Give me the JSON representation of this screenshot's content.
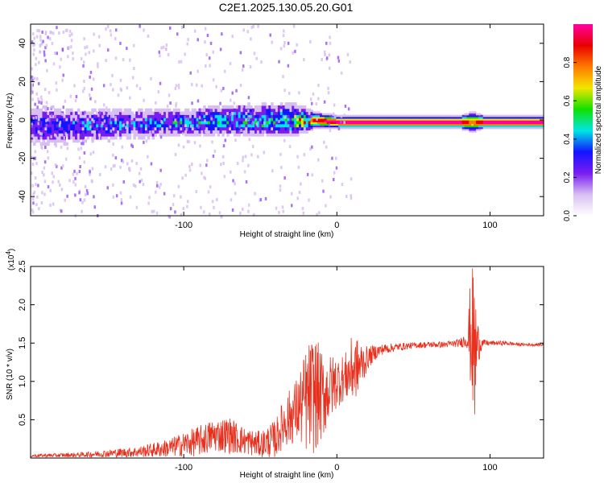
{
  "title": "C2E1.2025.130.05.20.G01",
  "colors": {
    "series": "#e8301e",
    "frame": "#000000"
  },
  "chart_data": [
    {
      "type": "heatmap",
      "name": "spectrogram",
      "xlabel": "Height of straight line (km)",
      "ylabel": "Frequency (Hz)",
      "xlim": [
        -200,
        135
      ],
      "ylim": [
        -50,
        50
      ],
      "xticks": [
        -100,
        0,
        100
      ],
      "xtick_labels": [
        "-100",
        "0",
        "100"
      ],
      "yticks": [
        -40,
        -20,
        0,
        20,
        40
      ],
      "ytick_labels": [
        "-40",
        "-20",
        "0",
        "20",
        "40"
      ],
      "colorbar": {
        "label": "Normalized spectral amplitude",
        "range": [
          0,
          1
        ],
        "ticks": [
          0.0,
          0.2,
          0.4,
          0.6,
          0.8
        ],
        "tick_labels": [
          "0.0",
          "0.2",
          "0.4",
          "0.6",
          "0.8"
        ],
        "colormap": [
          "#ffffff",
          "#d8bff2",
          "#7a1cf0",
          "#1414ff",
          "#00e5e5",
          "#12e000",
          "#f2e500",
          "#ff7a00",
          "#e80000",
          "#ff00a0"
        ]
      },
      "band_profile": {
        "x": [
          -200,
          -170,
          -140,
          -100,
          -60,
          -30,
          -15,
          0,
          20,
          50,
          80,
          88,
          95,
          110,
          135
        ],
        "center_hz": [
          -3,
          -3,
          -2,
          -1,
          0,
          0,
          0,
          -1,
          -1,
          -1,
          -1,
          -1,
          -1,
          -1,
          -1
        ],
        "halfwidth_hz": [
          9,
          8,
          7,
          6,
          7,
          7,
          3,
          2.5,
          2.5,
          2.5,
          2.5,
          4,
          2.5,
          2.5,
          2.5
        ],
        "peak_amplitude": [
          0.3,
          0.33,
          0.35,
          0.4,
          0.45,
          0.5,
          0.9,
          1.0,
          1.0,
          1.0,
          1.0,
          0.8,
          1.0,
          1.0,
          1.0
        ]
      }
    },
    {
      "type": "line",
      "name": "snr",
      "xlabel": "Height of straight line (km)",
      "ylabel": "SNR (10 * v/v)",
      "y_multiplier": "(x10",
      "y_multiplier_exp": "4",
      "y_multiplier_close": ")",
      "xlim": [
        -200,
        135
      ],
      "ylim": [
        0,
        2.5
      ],
      "xticks": [
        -100,
        0,
        100
      ],
      "xtick_labels": [
        "-100",
        "0",
        "100"
      ],
      "yticks": [
        0.5,
        1.0,
        1.5,
        2.0,
        2.5
      ],
      "ytick_labels": [
        "0.5",
        "1.0",
        "1.5",
        "2.0",
        "2.5"
      ],
      "series": [
        {
          "name": "SNR",
          "x": [
            -200,
            -170,
            -150,
            -130,
            -110,
            -100,
            -90,
            -80,
            -70,
            -60,
            -50,
            -40,
            -35,
            -30,
            -25,
            -20,
            -15,
            -10,
            -5,
            0,
            5,
            10,
            15,
            20,
            25,
            30,
            40,
            50,
            60,
            70,
            80,
            85,
            88,
            90,
            92,
            95,
            100,
            110,
            120,
            135
          ],
          "values": [
            0.03,
            0.04,
            0.06,
            0.08,
            0.13,
            0.18,
            0.22,
            0.3,
            0.3,
            0.22,
            0.18,
            0.25,
            0.45,
            0.55,
            0.65,
            0.75,
            0.85,
            0.8,
            0.9,
            1.0,
            1.05,
            1.15,
            1.2,
            1.3,
            1.38,
            1.42,
            1.45,
            1.47,
            1.48,
            1.48,
            1.5,
            1.55,
            1.65,
            1.3,
            1.5,
            1.5,
            1.5,
            1.5,
            1.48,
            1.48
          ],
          "noise_amplitude": [
            0.02,
            0.03,
            0.05,
            0.07,
            0.12,
            0.16,
            0.2,
            0.22,
            0.24,
            0.18,
            0.17,
            0.25,
            0.32,
            0.38,
            0.45,
            0.7,
            0.8,
            0.6,
            0.45,
            0.35,
            0.3,
            0.45,
            0.35,
            0.15,
            0.1,
            0.07,
            0.05,
            0.04,
            0.04,
            0.04,
            0.05,
            0.12,
            0.9,
            1.1,
            0.3,
            0.05,
            0.03,
            0.03,
            0.02,
            0.02
          ]
        }
      ]
    }
  ]
}
